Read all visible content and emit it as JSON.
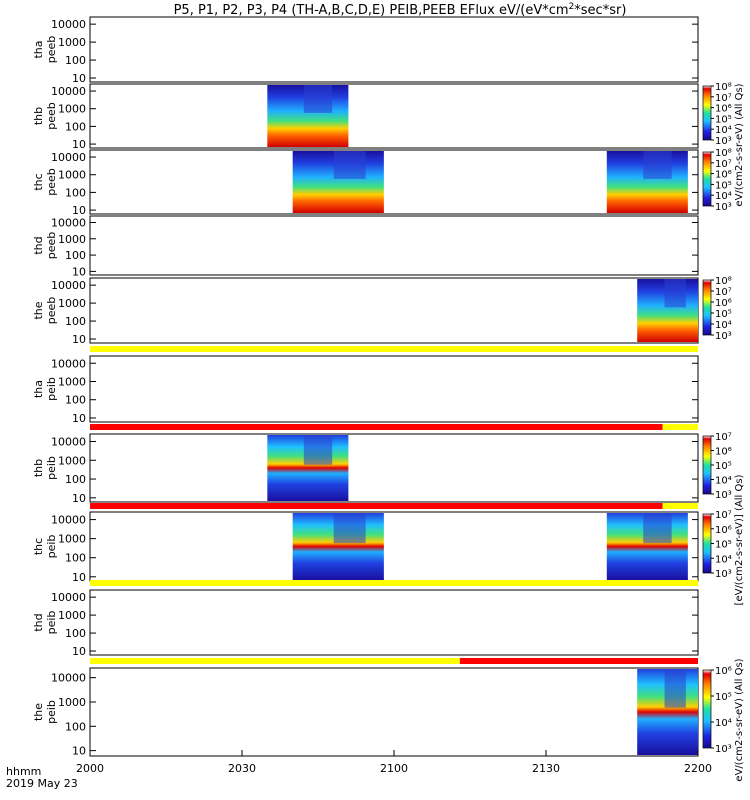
{
  "chart_data": {
    "type": "heatmap",
    "title": "P5, P1, P2, P3, P4 (TH-A,B,C,D,E) PEIB,PEEB EFlux eV/(eV*cm",
    "title_sup": "2",
    "title_tail": "*sec*sr)",
    "x_axis": {
      "ticks": [
        "2000",
        "2030",
        "2100",
        "2130",
        "2200"
      ],
      "label_line1": "hhmm",
      "label_line2": "2019 May 23",
      "range": [
        "20:00",
        "22:00"
      ]
    },
    "y_scale": "log",
    "y_ticks": [
      "10",
      "100",
      "1000",
      "10000"
    ],
    "colormap": [
      "#1a0a8a",
      "#2020e0",
      "#20c0ff",
      "#20e0a0",
      "#ffff00",
      "#ff8000",
      "#e00000",
      "#ffffff"
    ],
    "flag_colors": {
      "yellow": "#ffff00",
      "red": "#ff0000"
    },
    "panels": [
      {
        "name": "tha-peeb",
        "probe_label": "tha",
        "product_label": "peeb",
        "colorbar": {
          "ticks": [],
          "label": ""
        },
        "blocks": []
      },
      {
        "name": "thb-peeb",
        "probe_label": "thb",
        "product_label": "peeb",
        "colorbar": {
          "ticks": [
            "10³",
            "10⁴",
            "10⁵",
            "10⁶",
            "10⁷",
            "10⁸"
          ],
          "label": "eV/(cm2-s-sr-eV)"
        },
        "blocks": [
          {
            "start": "20:35",
            "end": "20:51"
          }
        ]
      },
      {
        "name": "thc-peeb",
        "probe_label": "thc",
        "product_label": "peeb",
        "colorbar": {
          "ticks": [
            "10³",
            "10⁴",
            "10⁵",
            "10⁶",
            "10⁷",
            "10⁸"
          ],
          "label": "eV/(cm2-s-sr-eV)"
        },
        "blocks": [
          {
            "start": "20:40",
            "end": "20:58"
          },
          {
            "start": "21:42",
            "end": "21:58"
          }
        ]
      },
      {
        "name": "thd-peeb",
        "probe_label": "thd",
        "product_label": "peeb",
        "colorbar": {
          "ticks": [],
          "label": ""
        },
        "blocks": []
      },
      {
        "name": "the-peeb",
        "probe_label": "the",
        "product_label": "peeb",
        "colorbar": {
          "ticks": [
            "10³",
            "10⁴",
            "10⁵",
            "10⁶",
            "10⁷",
            "10⁸"
          ],
          "label": "eV/(cm2-s-sr-eV)"
        },
        "blocks": [
          {
            "start": "21:48",
            "end": "22:00"
          }
        ]
      },
      {
        "name": "tha-peib",
        "probe_label": "tha",
        "product_label": "peib",
        "colorbar": {
          "ticks": [],
          "label": ""
        },
        "blocks": []
      },
      {
        "name": "thb-peib",
        "probe_label": "thb",
        "product_label": "peib",
        "colorbar": {
          "ticks": [
            "10³",
            "10⁴",
            "10⁵",
            "10⁶",
            "10⁷"
          ],
          "label": "eV/(cm2-s-sr-eV)"
        },
        "blocks": [
          {
            "start": "20:35",
            "end": "20:51"
          }
        ]
      },
      {
        "name": "thc-peib",
        "probe_label": "thc",
        "product_label": "peib",
        "colorbar": {
          "ticks": [
            "10³",
            "10⁴",
            "10⁵",
            "10⁶",
            "10⁷"
          ],
          "label": "eV/(cm2-s-sr-eV)"
        },
        "blocks": [
          {
            "start": "20:40",
            "end": "20:58"
          },
          {
            "start": "21:42",
            "end": "21:58"
          }
        ]
      },
      {
        "name": "thd-peib",
        "probe_label": "thd",
        "product_label": "peib",
        "colorbar": {
          "ticks": [],
          "label": ""
        },
        "blocks": []
      },
      {
        "name": "the-peib",
        "probe_label": "the",
        "product_label": "peib",
        "colorbar": {
          "ticks": [
            "10³",
            "10⁴",
            "10⁵",
            "10⁶"
          ],
          "label": "[eV/(cm2-s-sr-eV)] (All Qs)"
        },
        "blocks": [
          {
            "start": "21:48",
            "end": "22:00"
          }
        ]
      }
    ],
    "flag_bars": [
      {
        "segments": [
          {
            "start": "20:00",
            "end": "22:00",
            "color": "yellow"
          }
        ]
      },
      {
        "segments": [
          {
            "start": "20:00",
            "end": "21:53",
            "color": "red"
          },
          {
            "start": "21:53",
            "end": "22:00",
            "color": "yellow"
          }
        ]
      },
      {
        "segments": [
          {
            "start": "20:00",
            "end": "21:53",
            "color": "red"
          },
          {
            "start": "21:53",
            "end": "22:00",
            "color": "yellow"
          }
        ]
      },
      {
        "segments": [
          {
            "start": "20:00",
            "end": "22:00",
            "color": "yellow"
          }
        ]
      },
      {
        "segments": [
          {
            "start": "20:00",
            "end": "21:13",
            "color": "yellow"
          },
          {
            "start": "21:13",
            "end": "22:00",
            "color": "red"
          }
        ]
      }
    ],
    "empty_panel_unit_label": "(All Qs)",
    "colorbar_side_labels": [
      "eV/(cm2-s-sr-eV) (All Qs)",
      "[eV/(cm2-s-sr-eV)] (All Qs)",
      "eV/(cm2-s-sr-eV) (All Qs)"
    ]
  }
}
